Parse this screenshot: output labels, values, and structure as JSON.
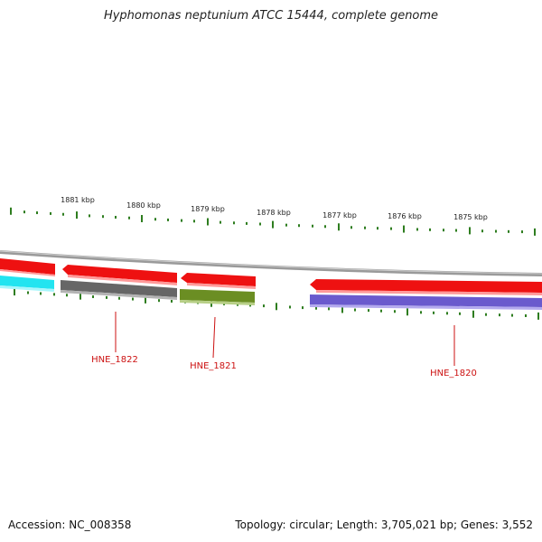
{
  "title": "Hyphomonas neptunium ATCC 15444, complete genome",
  "accession": "Accession: NC_008358",
  "topology": "Topology: circular; Length: 3,705,021 bp; Genes: 3,552",
  "ruler": {
    "ticks": [
      {
        "label": "1881 kbp"
      },
      {
        "label": "1880 kbp"
      },
      {
        "label": "1879 kbp"
      },
      {
        "label": "1878 kbp"
      },
      {
        "label": "1877 kbp"
      },
      {
        "label": "1876 kbp"
      },
      {
        "label": "1875 kbp"
      }
    ]
  },
  "colors": {
    "backbone": "#8a8a8a",
    "tick_color": "#2e7d1f",
    "label_color": "#cc1111",
    "gene_red": "#ee1111",
    "gene_cyan": "#22e4f0",
    "gene_gray": "#666666",
    "gene_olive": "#6b8e23",
    "gene_purple": "#6a5acd"
  },
  "genes": [
    {
      "label": "HNE_1822"
    },
    {
      "label": "HNE_1821"
    },
    {
      "label": "HNE_1820"
    }
  ]
}
